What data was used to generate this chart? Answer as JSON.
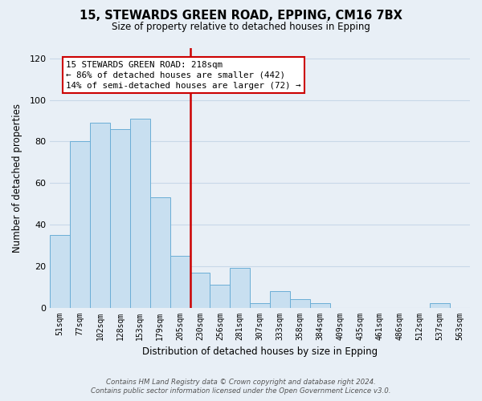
{
  "title": "15, STEWARDS GREEN ROAD, EPPING, CM16 7BX",
  "subtitle": "Size of property relative to detached houses in Epping",
  "xlabel": "Distribution of detached houses by size in Epping",
  "ylabel": "Number of detached properties",
  "categories": [
    "51sqm",
    "77sqm",
    "102sqm",
    "128sqm",
    "153sqm",
    "179sqm",
    "205sqm",
    "230sqm",
    "256sqm",
    "281sqm",
    "307sqm",
    "333sqm",
    "358sqm",
    "384sqm",
    "409sqm",
    "435sqm",
    "461sqm",
    "486sqm",
    "512sqm",
    "537sqm",
    "563sqm"
  ],
  "values": [
    35,
    80,
    89,
    86,
    91,
    53,
    25,
    17,
    11,
    19,
    2,
    8,
    4,
    2,
    0,
    0,
    0,
    0,
    0,
    2,
    0
  ],
  "bar_color": "#c8dff0",
  "bar_edge_color": "#6baed6",
  "highlight_index": 7,
  "highlight_color": "#cc0000",
  "ylim": [
    0,
    125
  ],
  "yticks": [
    0,
    20,
    40,
    60,
    80,
    100,
    120
  ],
  "annotation_text": "15 STEWARDS GREEN ROAD: 218sqm\n← 86% of detached houses are smaller (442)\n14% of semi-detached houses are larger (72) →",
  "annotation_box_color": "#ffffff",
  "annotation_border_color": "#cc0000",
  "footer_line1": "Contains HM Land Registry data © Crown copyright and database right 2024.",
  "footer_line2": "Contains public sector information licensed under the Open Government Licence v3.0.",
  "background_color": "#e8eff6",
  "grid_color": "#c8d8e8",
  "fig_width": 6.0,
  "fig_height": 5.0
}
